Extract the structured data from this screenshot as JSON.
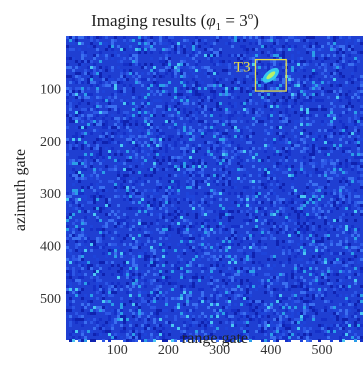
{
  "chart_data": {
    "type": "heatmap",
    "title_prefix": "Imaging results (",
    "title_math": "φ",
    "title_sub": "1",
    "title_eq": " = 3",
    "title_sup": "o",
    "title_suffix": ")",
    "xlabel": "range gate",
    "ylabel": "azimuth gate",
    "xlim": [
      0,
      580
    ],
    "ylim": [
      0,
      580
    ],
    "xticks": [
      100,
      200,
      300,
      400,
      500
    ],
    "yticks": [
      100,
      200,
      300,
      400,
      500
    ],
    "y_reversed": true,
    "colormap": "jet",
    "background_color": "#1f3fd2",
    "targets": [
      {
        "label": "T3",
        "x_range": [
          370,
          430
        ],
        "y_range": [
          45,
          105
        ]
      }
    ],
    "annotation_color": "#e6e04a"
  }
}
